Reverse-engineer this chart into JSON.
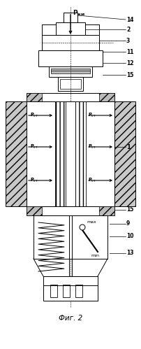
{
  "title": "Фиг. 2",
  "fig_width": 2.02,
  "fig_height": 4.99,
  "dpi": 100,
  "bg_color": "#ffffff",
  "line_color": "#000000"
}
